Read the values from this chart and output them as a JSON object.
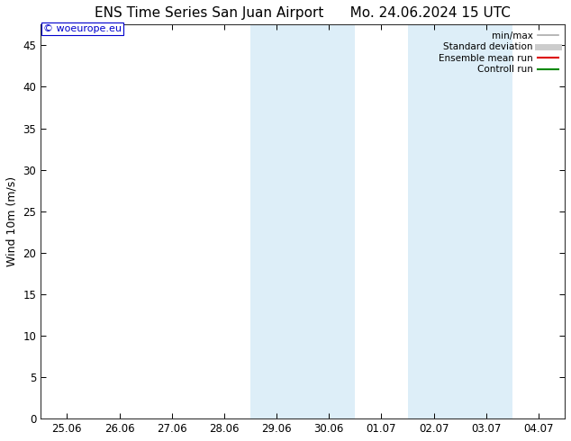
{
  "title_left": "ENS Time Series San Juan Airport",
  "title_right": "Mo. 24.06.2024 15 UTC",
  "ylabel": "Wind 10m (m/s)",
  "watermark": "© woeurope.eu",
  "yticks": [
    0,
    5,
    10,
    15,
    20,
    25,
    30,
    35,
    40,
    45
  ],
  "ylim": [
    0,
    47.5
  ],
  "xlim": [
    -0.5,
    9.5
  ],
  "xtick_labels": [
    "25.06",
    "26.06",
    "27.06",
    "28.06",
    "29.06",
    "30.06",
    "01.07",
    "02.07",
    "03.07",
    "04.07"
  ],
  "xtick_positions": [
    0,
    1,
    2,
    3,
    4,
    5,
    6,
    7,
    8,
    9
  ],
  "shaded_bands": [
    {
      "x_start": 3.5,
      "x_end": 5.5,
      "color": "#ddeef8"
    },
    {
      "x_start": 6.5,
      "x_end": 8.5,
      "color": "#ddeef8"
    }
  ],
  "legend_entries": [
    {
      "label": "min/max",
      "color": "#aaaaaa",
      "lw": 1.2,
      "style": "solid"
    },
    {
      "label": "Standard deviation",
      "color": "#cccccc",
      "lw": 5,
      "style": "solid"
    },
    {
      "label": "Ensemble mean run",
      "color": "#dd0000",
      "lw": 1.5,
      "style": "solid"
    },
    {
      "label": "Controll run",
      "color": "#008800",
      "lw": 1.5,
      "style": "solid"
    }
  ],
  "background_color": "#ffffff",
  "plot_bg_color": "#ffffff",
  "watermark_color": "#0000cc",
  "title_fontsize": 11,
  "ylabel_fontsize": 9,
  "tick_fontsize": 8.5,
  "legend_fontsize": 7.5,
  "watermark_fontsize": 8
}
